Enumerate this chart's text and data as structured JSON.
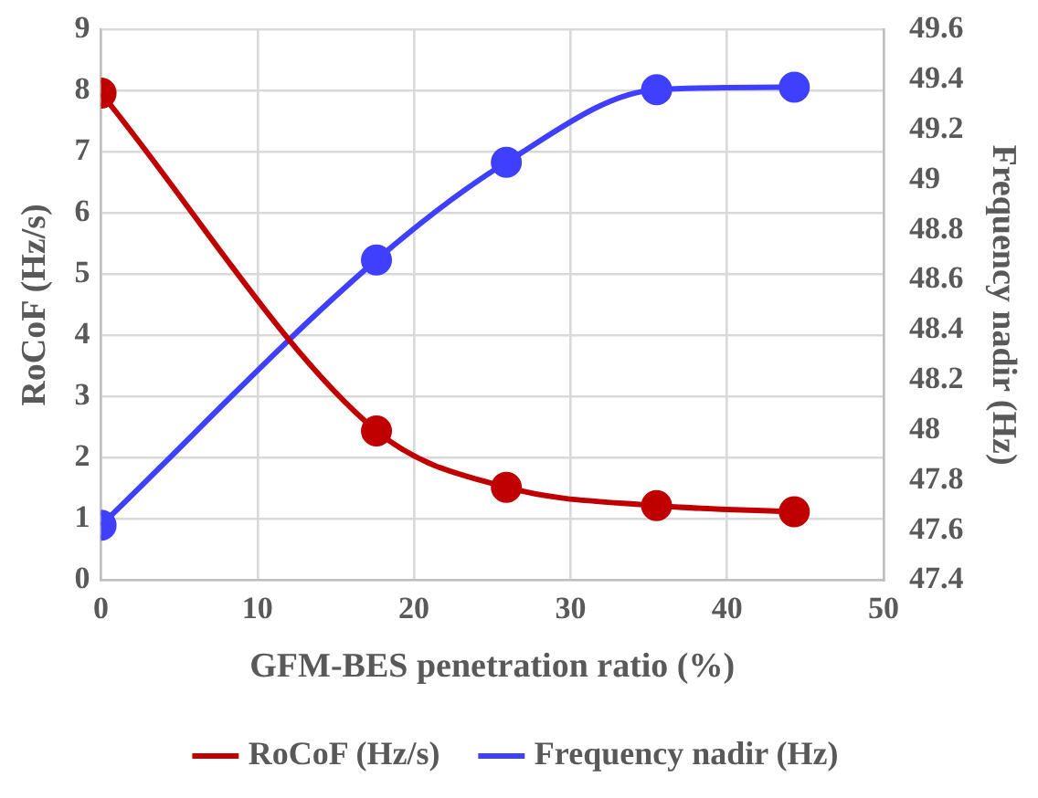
{
  "chart_data": {
    "type": "line",
    "xlabel": "GFM-BES penetration ratio (%)",
    "ylabel": "RoCoF (Hz/s)",
    "y2label": "Frequency nadir (Hz)",
    "xlim": [
      0,
      50
    ],
    "xticks": [
      0,
      10,
      20,
      30,
      40,
      50
    ],
    "ylim": [
      0,
      9
    ],
    "yticks": [
      0,
      1,
      2,
      3,
      4,
      5,
      6,
      7,
      8,
      9
    ],
    "y2lim": [
      47.4,
      49.6
    ],
    "y2ticks": [
      47.4,
      47.6,
      47.8,
      48,
      48.2,
      48.4,
      48.6,
      48.8,
      49,
      49.2,
      49.4,
      49.6
    ],
    "grid": true,
    "legend": "bottom",
    "marker": "circle",
    "line_style": "solid",
    "series": [
      {
        "name": "RoCoF (Hz/s)",
        "color": "#c00000",
        "x": [
          0,
          17.6,
          25.9,
          35.5,
          44.3
        ],
        "values": [
          7.96,
          2.44,
          1.52,
          1.22,
          1.12
        ]
      },
      {
        "name": "Frequency nadir (Hz)",
        "color": "#3f3fff",
        "axis": "y2",
        "x": [
          0,
          17.6,
          25.9,
          35.5,
          44.3
        ],
        "values": [
          47.62,
          48.68,
          49.07,
          49.36,
          49.37
        ]
      }
    ]
  }
}
